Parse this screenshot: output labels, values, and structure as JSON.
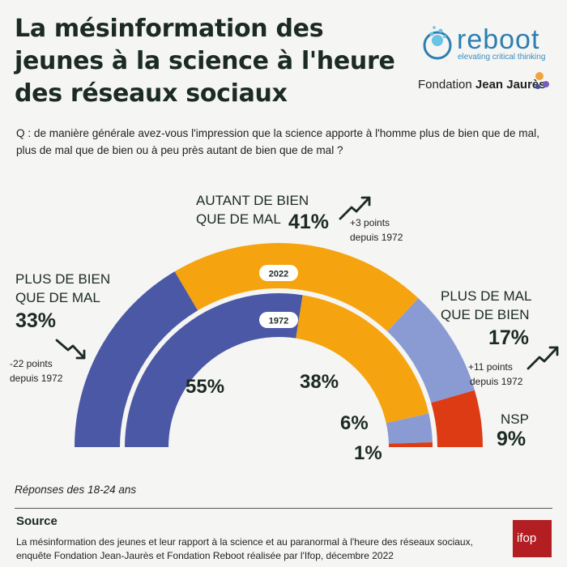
{
  "header": {
    "title": "La mésinformation des jeunes à la science à l'heure des réseaux sociaux",
    "logo_reboot_word": "reboot",
    "logo_reboot_tag": "elevating critical thinking",
    "logo_fjj_prefix": "Fondation ",
    "logo_fjj_name": "Jean Jaurès"
  },
  "question": "Q : de manière générale avez-vous l'impression que la science apporte à l'homme plus de bien que de mal, plus de mal que de bien ou à peu près autant de bien que de mal ?",
  "colors": {
    "plus_bien": "#4a58a6",
    "autant": "#f5a40f",
    "plus_mal": "#8a9ad3",
    "nsp": "#dc3b14",
    "title": "#1c2a24"
  },
  "chart_data": {
    "type": "donut-semicircle",
    "categories": [
      "PLUS DE BIEN QUE DE MAL",
      "AUTANT DE BIEN QUE DE MAL",
      "PLUS DE MAL QUE DE BIEN",
      "NSP"
    ],
    "series": [
      {
        "name": "2022",
        "values": [
          33,
          41,
          17,
          9
        ]
      },
      {
        "name": "1972",
        "values": [
          55,
          38,
          6,
          1
        ]
      }
    ],
    "labels": {
      "plus_bien_line1": "PLUS DE BIEN",
      "plus_bien_line2": "QUE DE MAL",
      "plus_bien_2022": "33%",
      "plus_bien_change_line1": "-22 points",
      "plus_bien_change_line2": "depuis 1972",
      "autant_line1": "AUTANT DE BIEN",
      "autant_line2": "QUE DE MAL",
      "autant_2022": "41%",
      "autant_change_line1": "+3 points",
      "autant_change_line2": "depuis 1972",
      "plus_mal_line1": "PLUS DE MAL",
      "plus_mal_line2": "QUE DE BIEN",
      "plus_mal_2022": "17%",
      "plus_mal_change_line1": "+11 points",
      "plus_mal_change_line2": "depuis 1972",
      "nsp_label": "NSP",
      "nsp_2022": "9%",
      "plus_bien_1972": "55%",
      "autant_1972": "38%",
      "plus_mal_1972": "6%",
      "nsp_1972": "1%"
    }
  },
  "footer": {
    "note": "Réponses des 18-24 ans",
    "source_title": "Source",
    "source_text": "La mésinformation des jeunes et leur rapport à la science et au paranormal à l'heure des réseaux sociaux, enquête  Fondation Jean-Jaurès et Fondation Reboot réalisée par l'Ifop, décembre 2022",
    "ifop_logo": "ifop"
  }
}
